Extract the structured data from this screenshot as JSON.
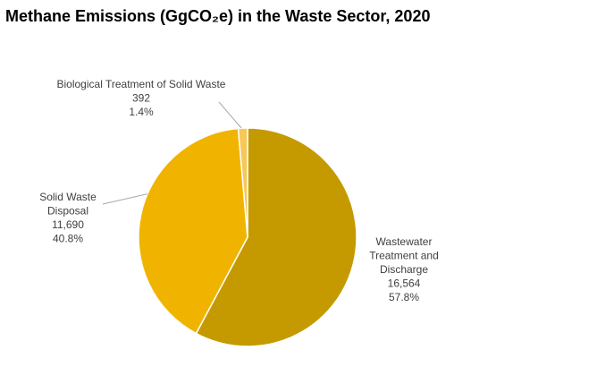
{
  "chart_data": {
    "type": "pie",
    "title": "Methane Emissions (GgCO₂e) in the Waste Sector, 2020",
    "slices": [
      {
        "label": [
          "Wastewater",
          "Treatment and",
          "Discharge"
        ],
        "value": 16564,
        "value_text": "16,564",
        "percent_text": "57.8%",
        "color": "#C59A00"
      },
      {
        "label": [
          "Solid Waste",
          "Disposal"
        ],
        "value": 11690,
        "value_text": "11,690",
        "percent_text": "40.8%",
        "color": "#F0B400"
      },
      {
        "label": [
          "Biological Treatment of Solid Waste"
        ],
        "value": 392,
        "value_text": "392",
        "percent_text": "1.4%",
        "color": "#F7C75A"
      }
    ],
    "legend": "none",
    "start_angle": "12 o'clock",
    "direction": "clockwise"
  }
}
